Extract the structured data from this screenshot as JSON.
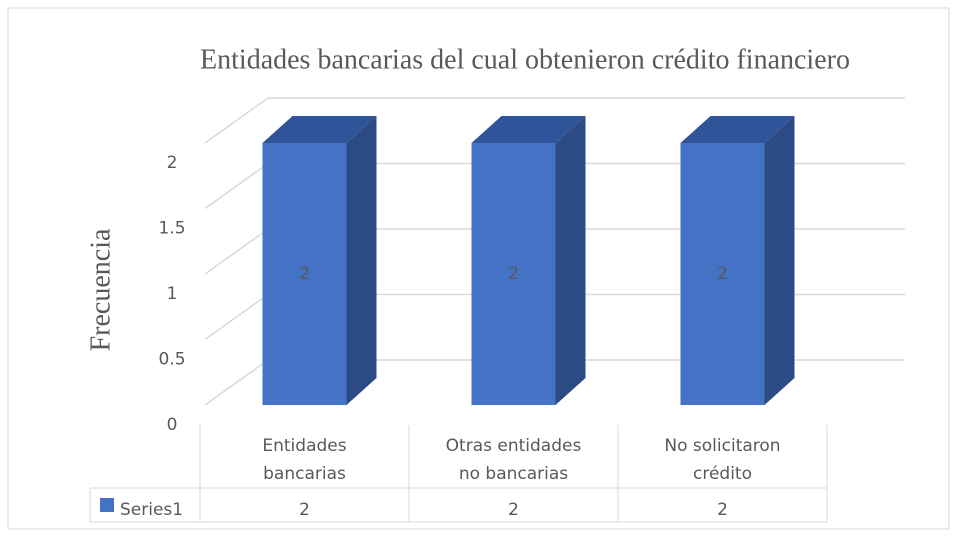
{
  "chart_data": {
    "type": "bar3d",
    "title": "Entidades bancarias del cual obtenieron crédito financiero",
    "y_label": "Frecuencia",
    "categories": [
      "Entidades bancarias",
      "Otras entidades no bancarias",
      "No solicitaron crédito"
    ],
    "series": [
      {
        "name": "Series1",
        "color": "#4472c4",
        "side_color": "#2c4b85",
        "top_color": "#30549a",
        "values": [
          2,
          2,
          2
        ]
      }
    ],
    "ylim": [
      0,
      2
    ],
    "yticks": [
      0,
      0.5,
      1,
      1.5,
      2
    ],
    "grid": true,
    "data_table": true
  }
}
